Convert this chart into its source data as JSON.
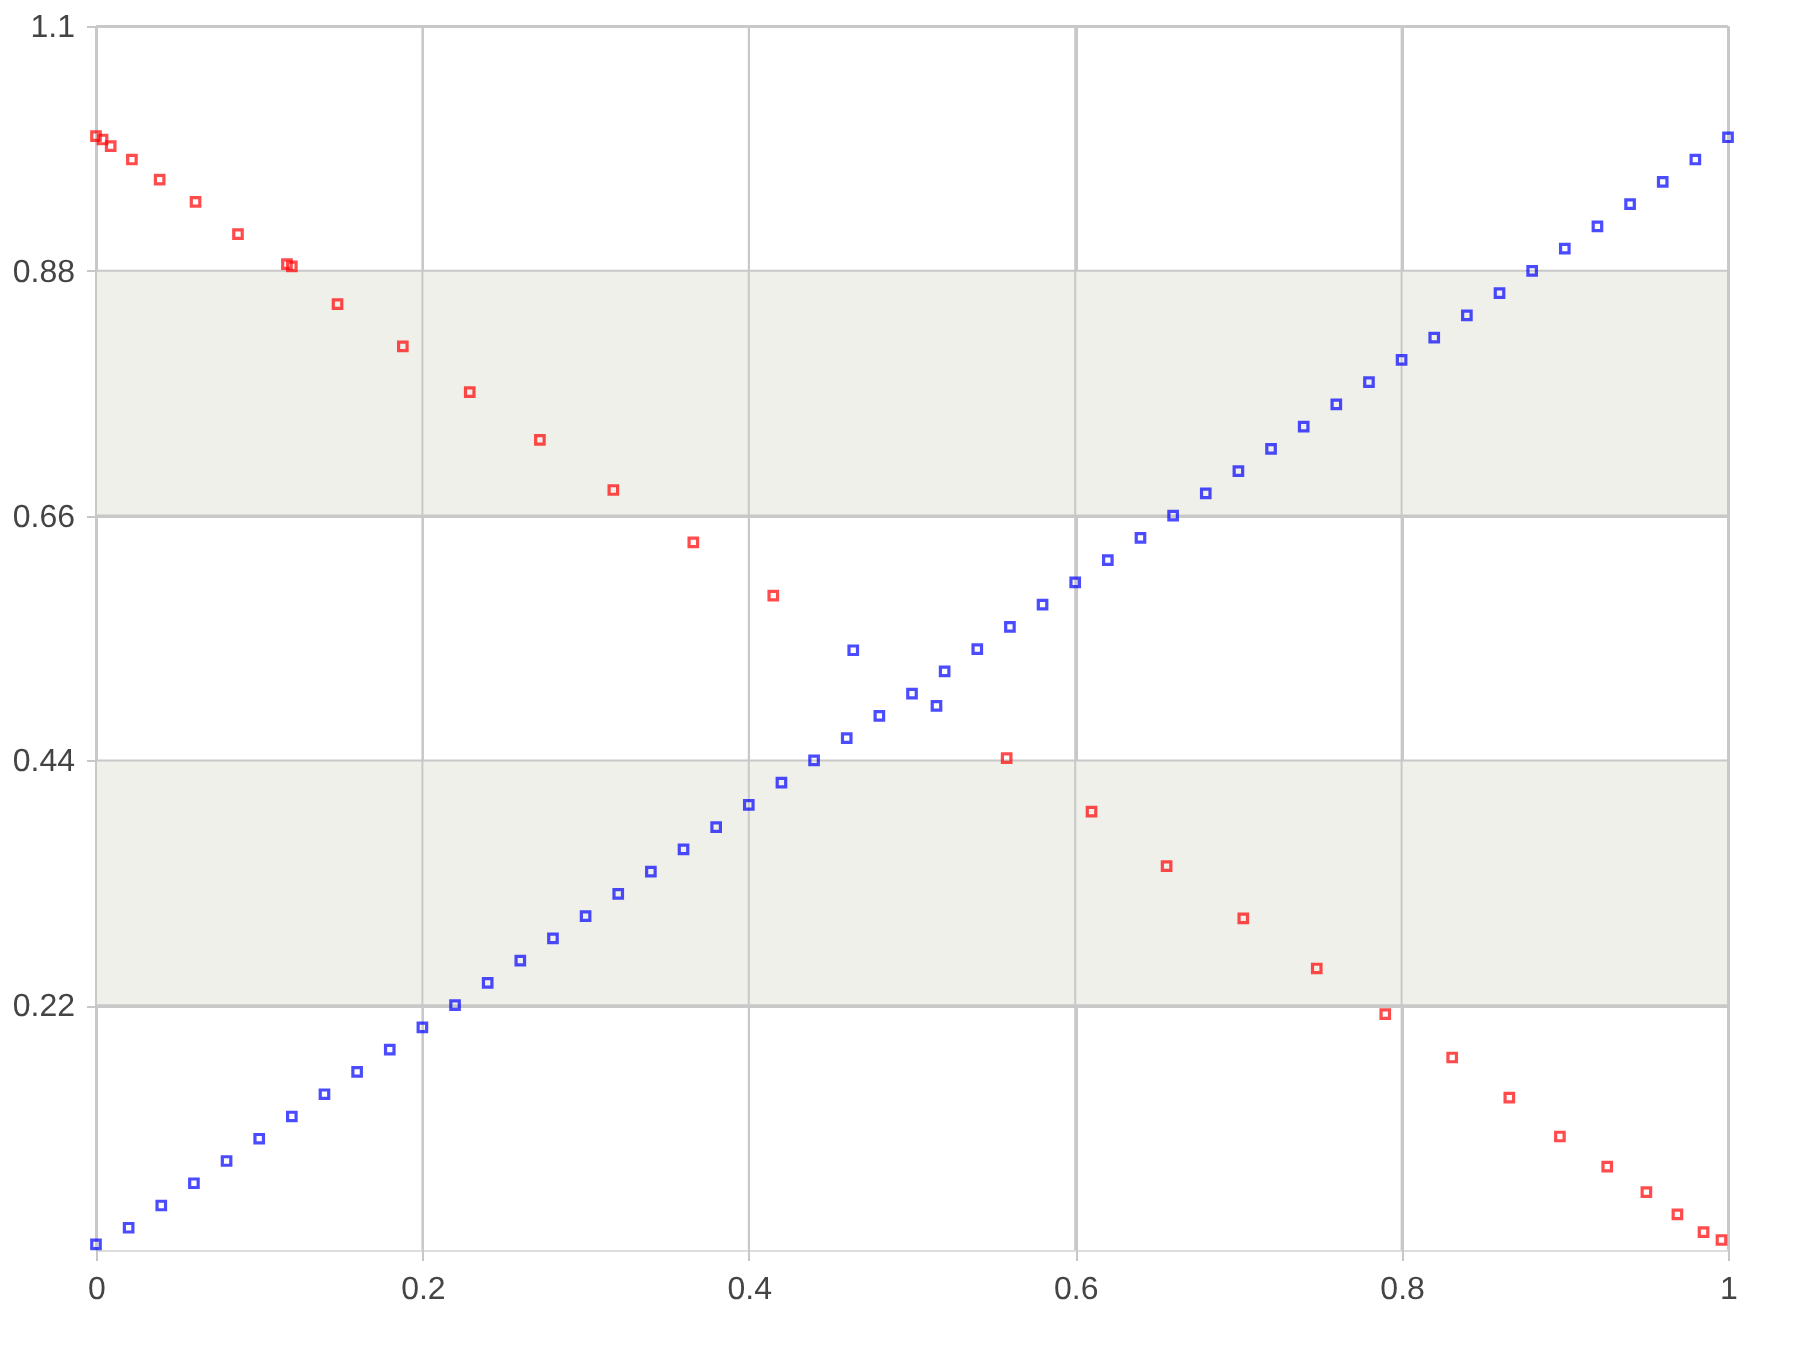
{
  "chart_data": {
    "type": "scatter",
    "xlim": [
      0,
      1
    ],
    "ylim": [
      0,
      1.1
    ],
    "xticks": [
      0,
      0.2,
      0.4,
      0.6,
      0.8,
      1
    ],
    "yticks": [
      0.22,
      0.44,
      0.66,
      0.88,
      1.1
    ],
    "grid": true,
    "marker": "square",
    "bands": [
      {
        "axis": "y",
        "from": 0.22,
        "to": 0.44,
        "color": "#f0f0ea"
      },
      {
        "axis": "y",
        "from": 0.66,
        "to": 0.88,
        "color": "#f0f0ea"
      }
    ],
    "series": [
      {
        "color": "#ff0000",
        "x": [
          0,
          0.004,
          0.009,
          0.022,
          0.039,
          0.061,
          0.087,
          0.117,
          0.12,
          0.148,
          0.188,
          0.229,
          0.272,
          0.317,
          0.366,
          0.415,
          0.558,
          0.61,
          0.656,
          0.703,
          0.748,
          0.79,
          0.831,
          0.866,
          0.897,
          0.926,
          0.95,
          0.969,
          0.985,
          0.996
        ],
        "values": [
          1.001,
          0.998,
          0.992,
          0.98,
          0.962,
          0.942,
          0.913,
          0.886,
          0.884,
          0.85,
          0.812,
          0.771,
          0.728,
          0.683,
          0.636,
          0.588,
          0.442,
          0.394,
          0.345,
          0.298,
          0.253,
          0.212,
          0.173,
          0.137,
          0.102,
          0.075,
          0.052,
          0.032,
          0.016,
          0.009
        ]
      },
      {
        "color": "#0000ff",
        "x": [
          0,
          0.02,
          0.04,
          0.06,
          0.08,
          0.1,
          0.12,
          0.14,
          0.16,
          0.18,
          0.2,
          0.22,
          0.24,
          0.26,
          0.28,
          0.3,
          0.32,
          0.34,
          0.36,
          0.38,
          0.4,
          0.42,
          0.44,
          0.46,
          0.464,
          0.48,
          0.5,
          0.515,
          0.52,
          0.54,
          0.56,
          0.58,
          0.6,
          0.62,
          0.64,
          0.66,
          0.68,
          0.7,
          0.72,
          0.74,
          0.76,
          0.78,
          0.8,
          0.82,
          0.84,
          0.86,
          0.88,
          0.9,
          0.92,
          0.94,
          0.96,
          0.98,
          1
        ],
        "values": [
          0.005,
          0.02,
          0.04,
          0.06,
          0.08,
          0.1,
          0.12,
          0.14,
          0.16,
          0.18,
          0.2,
          0.22,
          0.24,
          0.26,
          0.28,
          0.3,
          0.32,
          0.34,
          0.36,
          0.38,
          0.4,
          0.42,
          0.44,
          0.46,
          0.539,
          0.48,
          0.5,
          0.489,
          0.52,
          0.54,
          0.56,
          0.58,
          0.6,
          0.62,
          0.64,
          0.66,
          0.68,
          0.7,
          0.72,
          0.74,
          0.76,
          0.78,
          0.8,
          0.82,
          0.84,
          0.86,
          0.88,
          0.9,
          0.92,
          0.94,
          0.96,
          0.98,
          1
        ]
      }
    ]
  }
}
